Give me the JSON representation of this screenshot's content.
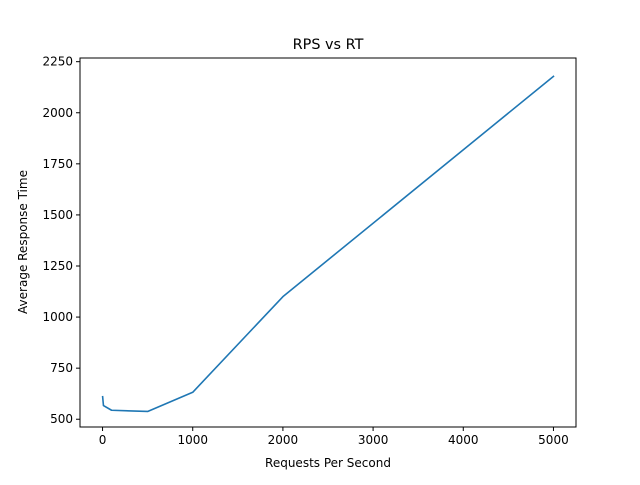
{
  "chart_data": {
    "type": "line",
    "title": "RPS vs RT",
    "xlabel": "Requests Per Second",
    "ylabel": "Average Response Time",
    "xlim": [
      -250,
      5250
    ],
    "ylim": [
      462,
      2268
    ],
    "xticks": [
      0,
      1000,
      2000,
      3000,
      4000,
      5000
    ],
    "xtick_labels": [
      "0",
      "1000",
      "2000",
      "3000",
      "4000",
      "5000"
    ],
    "yticks": [
      500,
      750,
      1000,
      1250,
      1500,
      1750,
      2000,
      2250
    ],
    "ytick_labels": [
      "500",
      "750",
      "1000",
      "1250",
      "1500",
      "1750",
      "2000",
      "2250"
    ],
    "grid": false,
    "series": [
      {
        "color": "#1f77b4",
        "x": [
          1,
          10,
          100,
          500,
          1000,
          2000,
          5000
        ],
        "y": [
          610,
          567,
          544,
          538,
          632,
          1100,
          2178
        ]
      }
    ]
  }
}
